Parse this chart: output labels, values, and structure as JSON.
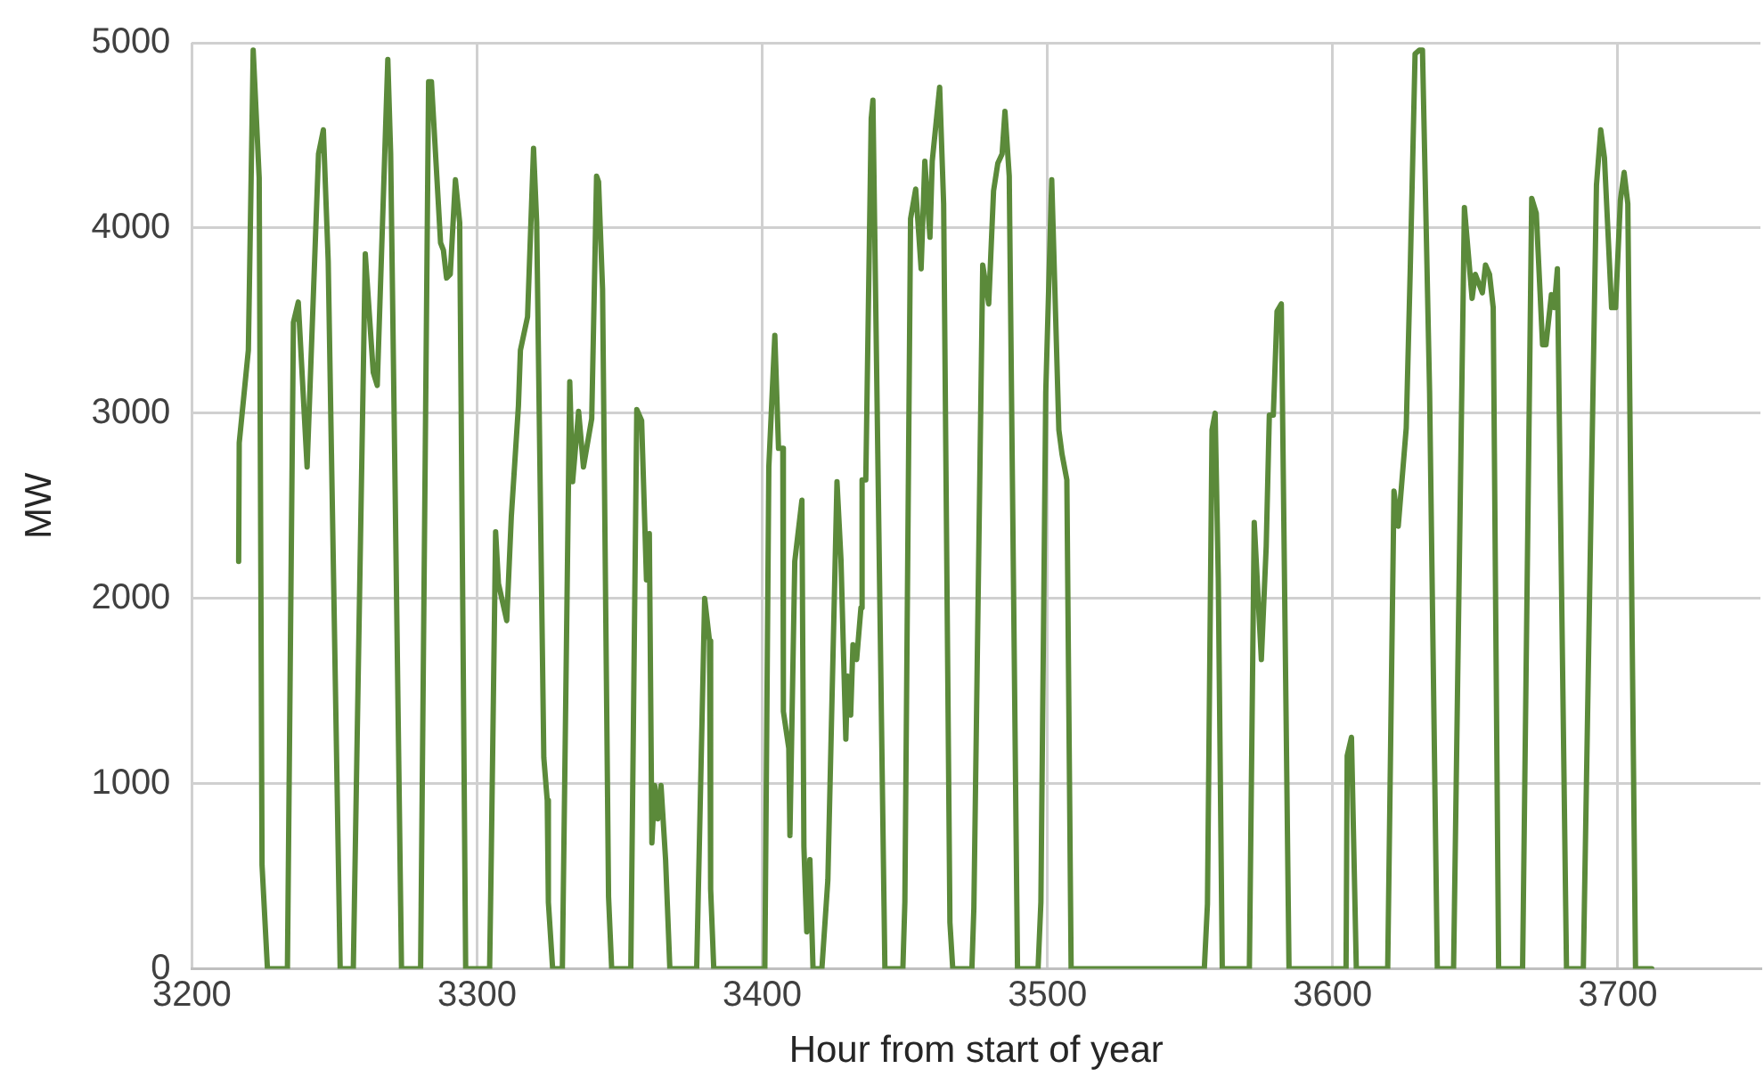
{
  "chart_data": {
    "type": "line",
    "xlabel": "Hour from start of year",
    "ylabel": "MW",
    "xlim": [
      3200,
      3750
    ],
    "xticks": [
      3200,
      3300,
      3400,
      3500,
      3600,
      3700
    ],
    "ylim": [
      0,
      5000
    ],
    "yticks": [
      0,
      1000,
      2000,
      3000,
      4000,
      5000
    ],
    "grid": true,
    "legend": false,
    "marker": "none",
    "line_style": "solid",
    "series": [
      {
        "color": "#5b8a3a",
        "x": [
          3216.4,
          3216.6,
          3219.8,
          3221.5,
          3223.6,
          3224.6,
          3226.5,
          3233.5,
          3235.6,
          3237.3,
          3240.4,
          3244.4,
          3246.1,
          3247.8,
          3252,
          3256.6,
          3260.8,
          3263.6,
          3265,
          3268.7,
          3269.7,
          3273.5,
          3280.2,
          3283,
          3284,
          3287.2,
          3288.2,
          3289.3,
          3290.6,
          3292.4,
          3293.9,
          3296,
          3304.4,
          3305,
          3306.5,
          3307.5,
          3310.4,
          3312,
          3314.5,
          3315.2,
          3317.7,
          3319.8,
          3320.9,
          3323.4,
          3324.6,
          3325,
          3326.5,
          3329.9,
          3332.5,
          3333.5,
          3335.6,
          3337.3,
          3340.2,
          3341.9,
          3342.6,
          3344,
          3346.1,
          3347.2,
          3353.9,
          3356,
          3357.7,
          3359.4,
          3360.4,
          3361.3,
          3362.3,
          3363.4,
          3364.5,
          3366.1,
          3367.6,
          3377,
          3379.8,
          3381.5,
          3381.9,
          3383,
          3400.9,
          3402.3,
          3404.4,
          3405.7,
          3407.2,
          3407.4,
          3409.3,
          3409.7,
          3411.4,
          3413.9,
          3414.6,
          3415.6,
          3416.7,
          3417.8,
          3420.9,
          3423,
          3426.2,
          3427.6,
          3429.3,
          3429.9,
          3431,
          3431.8,
          3433.1,
          3434.6,
          3435,
          3436.3,
          3438.2,
          3438.8,
          3443,
          3449.3,
          3450,
          3452,
          3453.8,
          3455.7,
          3457,
          3458.8,
          3459.6,
          3462.2,
          3463.6,
          3465.8,
          3466.8,
          3473.5,
          3474.2,
          3477.3,
          3479.4,
          3481.1,
          3482.6,
          3484.1,
          3485.1,
          3486.6,
          3489.5,
          3496.7,
          3497.7,
          3499.4,
          3501.5,
          3504,
          3505.1,
          3506.8,
          3508.3,
          3555,
          3556.1,
          3557.7,
          3558.8,
          3559.9,
          3561.3,
          3570.8,
          3572.5,
          3575,
          3576.7,
          3577.8,
          3579.2,
          3580.5,
          3582,
          3584.7,
          3604.7,
          3605.1,
          3606.6,
          3608.3,
          3619.3,
          3621.5,
          3623,
          3625.8,
          3627.2,
          3628.9,
          3630.4,
          3631.5,
          3634,
          3636.7,
          3642.4,
          3646.2,
          3648.9,
          3650,
          3652.5,
          3653.6,
          3655,
          3656.3,
          3658.2,
          3666.6,
          3669.8,
          3671.4,
          3673.6,
          3674.8,
          3676.7,
          3677.7,
          3678.8,
          3682,
          3687.9,
          3692.5,
          3694,
          3695.3,
          3697.8,
          3699.2,
          3700.9,
          3702.2,
          3703.5,
          3706.2,
          3711.9
        ],
        "values": [
          2200,
          2840,
          3340,
          4960,
          4270,
          560,
          0,
          0,
          3490,
          3600,
          2710,
          4400,
          4530,
          3820,
          0,
          0,
          3860,
          3220,
          3150,
          4910,
          4400,
          0,
          0,
          4790,
          4790,
          3920,
          3880,
          3730,
          3750,
          4260,
          4030,
          0,
          0,
          630,
          2360,
          2080,
          1880,
          2440,
          3040,
          3340,
          3520,
          4430,
          4030,
          1140,
          910,
          360,
          0,
          0,
          3170,
          2630,
          3010,
          2710,
          2970,
          4280,
          4250,
          3670,
          390,
          0,
          0,
          3020,
          2960,
          2100,
          2350,
          680,
          990,
          810,
          990,
          590,
          0,
          0,
          2000,
          1770,
          430,
          0,
          0,
          2710,
          3420,
          2810,
          2810,
          1390,
          1190,
          720,
          2200,
          2530,
          660,
          200,
          590,
          0,
          0,
          480,
          2630,
          2210,
          1240,
          1580,
          1370,
          1750,
          1670,
          1950,
          2640,
          2640,
          4590,
          4690,
          0,
          0,
          360,
          4050,
          4210,
          3780,
          4360,
          3950,
          4360,
          4760,
          4130,
          250,
          0,
          0,
          330,
          3800,
          3590,
          4200,
          4350,
          4400,
          4630,
          4280,
          0,
          0,
          360,
          3110,
          4260,
          2910,
          2780,
          2640,
          0,
          0,
          350,
          2910,
          3000,
          2110,
          0,
          0,
          2410,
          1670,
          2280,
          2990,
          2990,
          3550,
          3590,
          0,
          0,
          1150,
          1250,
          0,
          0,
          2580,
          2390,
          2920,
          3770,
          4940,
          4960,
          4960,
          3110,
          0,
          0,
          4110,
          3620,
          3750,
          3650,
          3800,
          3750,
          3570,
          0,
          0,
          4160,
          4080,
          3370,
          3370,
          3640,
          3570,
          3780,
          0,
          0,
          4230,
          4530,
          4380,
          3570,
          3570,
          4150,
          4300,
          4130,
          0,
          0
        ]
      }
    ]
  }
}
